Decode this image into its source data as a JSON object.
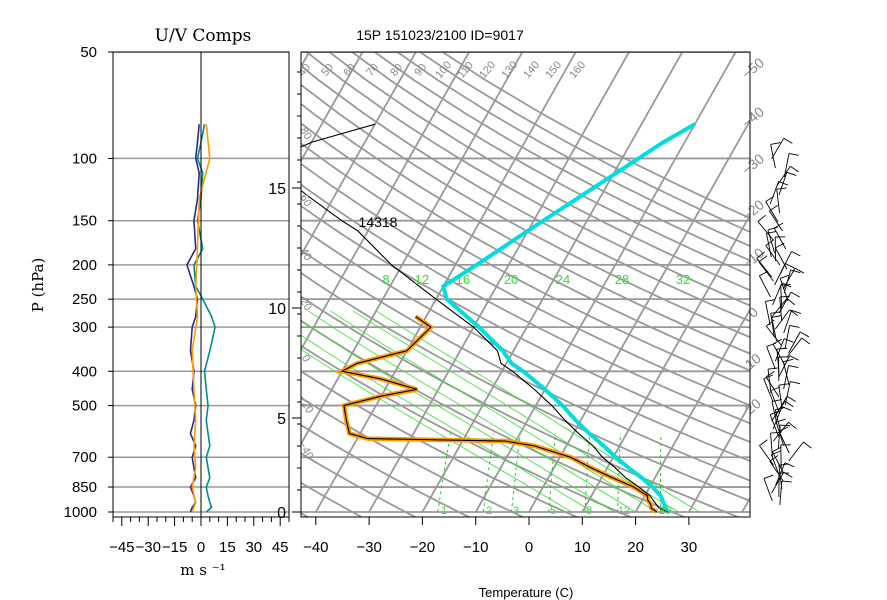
{
  "chart_data": [
    {
      "type": "line",
      "title": "U/V Comps",
      "ylabel": "P (hPa)",
      "xlabel": "m  s ⁻¹",
      "xlim": [
        -50,
        50
      ],
      "ylim": [
        1000,
        50
      ],
      "yscale": "log",
      "grid": true,
      "pressure_ticks": [
        "50",
        "100",
        "150",
        "200",
        "250",
        "300",
        "400",
        "500",
        "700",
        "850",
        "1000"
      ],
      "pressure_values": [
        50,
        100,
        150,
        200,
        250,
        300,
        400,
        500,
        700,
        850,
        1000
      ],
      "speed_ticks": [
        "−45",
        "−30",
        "−15",
        "0",
        "15",
        "30",
        "45"
      ],
      "speed_values": [
        -45,
        -30,
        -15,
        0,
        15,
        30,
        45
      ],
      "series": [
        {
          "color": "#2b2b8c",
          "p": [
            1000,
            970,
            940,
            900,
            850,
            800,
            750,
            700,
            650,
            600,
            550,
            500,
            450,
            400,
            350,
            300,
            280,
            250,
            230,
            200,
            180,
            150,
            130,
            110,
            100,
            90,
            80
          ],
          "v": [
            -6,
            -5,
            -3,
            -4,
            -6,
            -3,
            -4,
            -5,
            -3,
            -6,
            -4,
            -3,
            -5,
            -4,
            -6,
            -5,
            -3,
            -2,
            -4,
            -8,
            -3,
            -4,
            -2,
            -1,
            -3,
            -2,
            -1
          ]
        },
        {
          "color": "#008b8b",
          "p": [
            1000,
            970,
            940,
            900,
            850,
            800,
            750,
            700,
            650,
            600,
            550,
            500,
            450,
            400,
            350,
            300,
            280,
            250,
            230,
            200,
            180,
            150,
            130,
            110,
            100,
            90,
            80
          ],
          "v": [
            3,
            6,
            5,
            4,
            3,
            5,
            4,
            3,
            5,
            4,
            3,
            4,
            3,
            2,
            5,
            8,
            6,
            1,
            -3,
            -4,
            1,
            -2,
            0,
            1,
            -2,
            0,
            2
          ]
        },
        {
          "color": "#ff9900",
          "p": [
            1000,
            940,
            850,
            750,
            650,
            550,
            450,
            350,
            280,
            230,
            180,
            130,
            100,
            80
          ],
          "v": [
            -5,
            -3,
            -5,
            -3,
            -4,
            -3,
            -4,
            -5,
            -2,
            -3,
            -2,
            -1,
            5,
            3
          ]
        }
      ]
    },
    {
      "type": "line",
      "title": "15P 151023/2100 ID=9017",
      "xlabel": "Temperature (C)",
      "xlim": [
        -45,
        45
      ],
      "ylim": [
        1000,
        50
      ],
      "yscale": "log",
      "skew": true,
      "temperature_ticks": [
        "−40",
        "−30",
        "−20",
        "−10",
        "0",
        "10",
        "20",
        "30"
      ],
      "temperature_values": [
        -40,
        -30,
        -20,
        -10,
        0,
        10,
        20,
        30
      ],
      "height_km_ticks": [
        "0",
        "5",
        "10",
        "15"
      ],
      "height_km_values": [
        0,
        5,
        10,
        15
      ],
      "annotation": "14318",
      "mixing_ratio_labels": [
        "1",
        "2",
        "3",
        "5",
        "8",
        "12",
        "20"
      ],
      "theta_e_labels": [
        "8",
        "12",
        "16",
        "20",
        "24",
        "28",
        "32"
      ],
      "dry_adiabat_labels": [
        "40",
        "50",
        "60",
        "70",
        "80",
        "90",
        "100",
        "110",
        "120",
        "130",
        "140",
        "150",
        "160"
      ],
      "isotherm_labels_right": [
        "−50",
        "−40",
        "−30",
        "−20",
        "−10",
        "0",
        "10",
        "20"
      ],
      "isotherm_labels_left": [
        "80",
        "60",
        "40",
        "20",
        "0",
        "−20",
        "−40"
      ],
      "series": [
        {
          "name": "temperature",
          "color": "#000000",
          "p": [
            1000,
            975,
            950,
            925,
            900,
            850,
            800,
            750,
            700,
            650,
            600,
            550,
            500,
            450,
            400,
            380,
            350,
            300,
            250,
            200,
            160,
            150,
            130,
            110,
            100,
            90,
            80
          ],
          "t": [
            26,
            24,
            23,
            22,
            21,
            18,
            14.5,
            11.5,
            8,
            5,
            1,
            -3,
            -7,
            -12,
            -18,
            -21,
            -23,
            -30,
            -40,
            -52,
            -62,
            -66,
            -74,
            -83,
            -85,
            -80,
            -70
          ]
        },
        {
          "name": "dewpoint",
          "color": "#000000",
          "p": [
            1000,
            975,
            950,
            925,
            900,
            850,
            800,
            750,
            700,
            650,
            630,
            620,
            600,
            550,
            500,
            470,
            450,
            420,
            400,
            380,
            350,
            300,
            280
          ],
          "t": [
            24,
            22.5,
            22,
            21,
            20.5,
            17,
            12,
            7,
            2,
            -6,
            -12,
            -38,
            -42,
            -44,
            -46,
            -40,
            -34,
            -42,
            -50,
            -48,
            -40,
            -38,
            -42
          ]
        },
        {
          "name": "parcel",
          "color": "#00dddd",
          "p": [
            1000,
            950,
            900,
            850,
            800,
            750,
            700,
            650,
            600,
            550,
            500,
            450,
            400,
            380,
            350,
            300,
            250,
            230,
            200,
            160,
            120,
            90,
            80
          ],
          "t": [
            26,
            24.5,
            23,
            20.5,
            17.5,
            14,
            10.5,
            7,
            3,
            -1,
            -5,
            -10,
            -16,
            -19,
            -22,
            -29,
            -38,
            -40,
            -36,
            -30,
            -22,
            -14,
            -10
          ]
        }
      ]
    }
  ]
}
